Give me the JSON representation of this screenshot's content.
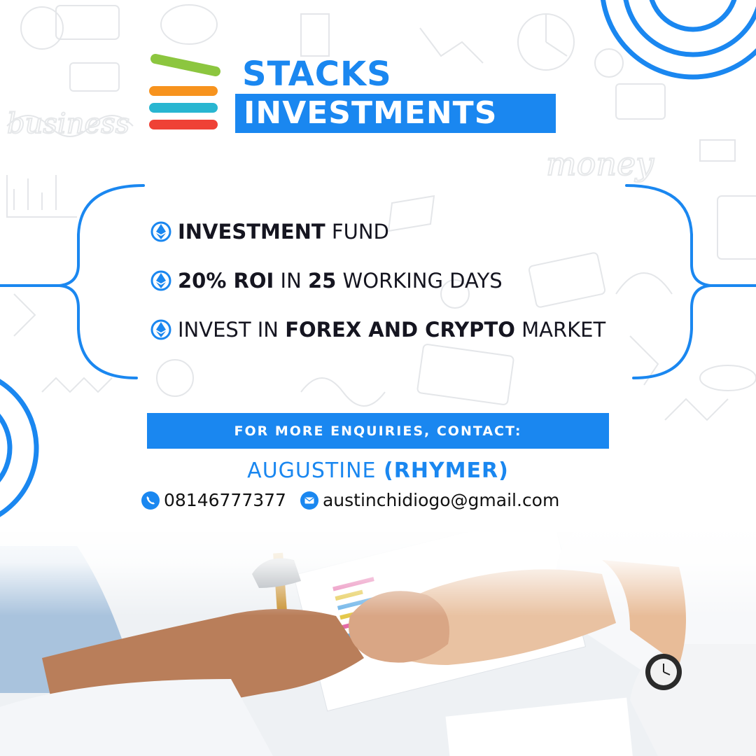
{
  "brand": {
    "line1": "STACKS",
    "line2": "INVESTMENTS",
    "colors": {
      "green": "#8cc63f",
      "orange": "#f7931e",
      "teal": "#29b6d1",
      "red": "#ef4136",
      "blue": "#1a87f0"
    }
  },
  "bullets": [
    {
      "icon": "ethereum-icon",
      "bold1": "INVESTMENT",
      "reg1": " FUND"
    },
    {
      "icon": "ethereum-icon",
      "bold1": "20% ROI",
      "reg1": " IN ",
      "bold2": "25",
      "reg2": " WORKING DAYS"
    },
    {
      "icon": "ethereum-icon",
      "reg1": "INVEST IN ",
      "bold1": "FOREX AND CRYPTO",
      "reg2": " MARKET"
    }
  ],
  "contact": {
    "heading": "FOR MORE ENQUIRIES, CONTACT:",
    "name_regular": "AUGUSTINE ",
    "name_bold": "(RHYMER)",
    "phone": "08146777377",
    "email": "austinchidiogo@gmail.com",
    "phone_icon": "phone-icon",
    "email_icon": "mail-icon"
  },
  "background": {
    "doodles": "money-doodle-pattern",
    "photo": "business-handshake-photo"
  }
}
